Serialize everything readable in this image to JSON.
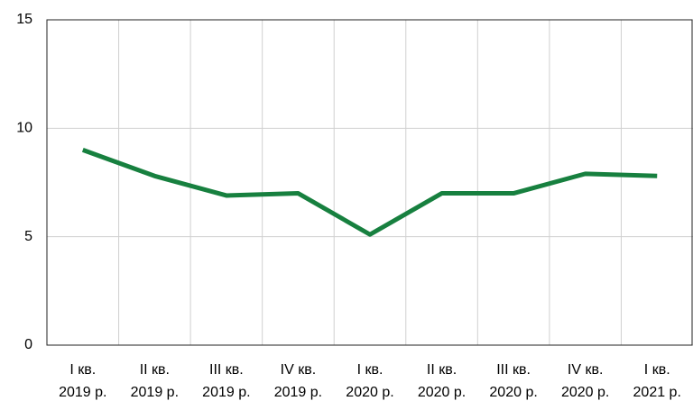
{
  "chart_data": {
    "type": "line",
    "categories": [
      "I кв.\n2019 р.",
      "II кв.\n2019 р.",
      "III кв.\n2019 р.",
      "IV кв.\n2019 р.",
      "I кв.\n2020 р.",
      "II кв.\n2020 р.",
      "III кв.\n2020 р.",
      "IV кв.\n2020 р.",
      "I кв.\n2021 р."
    ],
    "series": [
      {
        "color": "#17803f",
        "values": [
          9.0,
          7.8,
          6.9,
          7.0,
          5.1,
          7.0,
          7.0,
          7.9,
          7.8
        ]
      }
    ],
    "ylim": [
      0,
      15
    ],
    "yticks": [
      0,
      5,
      10,
      15
    ],
    "grid": true
  }
}
